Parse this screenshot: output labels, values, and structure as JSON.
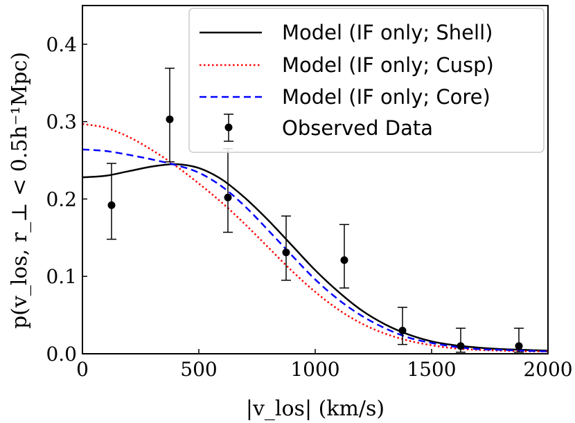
{
  "chart_data": {
    "type": "line",
    "title": "",
    "xlabel": "|v_los| (km/s)",
    "ylabel": "p(v_los, r_⊥ < 0.5h⁻¹Mpc)",
    "xlim": [
      0,
      2000
    ],
    "ylim": [
      0,
      0.45
    ],
    "xticks": [
      0,
      500,
      1000,
      1500,
      2000
    ],
    "xtick_labels": [
      "0",
      "500",
      "1000",
      "1500",
      "2000"
    ],
    "yticks": [
      0.0,
      0.1,
      0.2,
      0.3,
      0.4
    ],
    "ytick_labels": [
      "0.0",
      "0.1",
      "0.2",
      "0.3",
      "0.4"
    ],
    "grid": false,
    "legend_position": "top-right",
    "series": [
      {
        "name": "Model (IF only; Shell)",
        "color": "#000000",
        "style": "solid",
        "x": [
          0,
          100,
          200,
          300,
          400,
          500,
          600,
          700,
          800,
          900,
          1000,
          1100,
          1200,
          1300,
          1400,
          1500,
          1600,
          1700,
          1800,
          1900,
          2000
        ],
        "y": [
          0.228,
          0.23,
          0.236,
          0.242,
          0.245,
          0.24,
          0.225,
          0.201,
          0.172,
          0.14,
          0.108,
          0.08,
          0.056,
          0.038,
          0.025,
          0.016,
          0.011,
          0.008,
          0.006,
          0.005,
          0.004
        ]
      },
      {
        "name": "Model (IF only; Cusp)",
        "color": "#ff0000",
        "style": "dotted",
        "x": [
          0,
          100,
          200,
          300,
          400,
          500,
          600,
          700,
          800,
          900,
          1000,
          1100,
          1200,
          1300,
          1400,
          1500,
          1600,
          1700,
          1800,
          1900,
          2000
        ],
        "y": [
          0.297,
          0.292,
          0.28,
          0.263,
          0.243,
          0.22,
          0.195,
          0.167,
          0.137,
          0.107,
          0.08,
          0.057,
          0.039,
          0.026,
          0.017,
          0.011,
          0.007,
          0.005,
          0.004,
          0.003,
          0.003
        ]
      },
      {
        "name": "Model (IF only; Core)",
        "color": "#0000ff",
        "style": "dashed",
        "x": [
          0,
          100,
          200,
          300,
          400,
          500,
          600,
          700,
          800,
          900,
          1000,
          1100,
          1200,
          1300,
          1400,
          1500,
          1600,
          1700,
          1800,
          1900,
          2000
        ],
        "y": [
          0.264,
          0.262,
          0.257,
          0.251,
          0.244,
          0.234,
          0.216,
          0.19,
          0.159,
          0.127,
          0.096,
          0.07,
          0.049,
          0.033,
          0.021,
          0.014,
          0.009,
          0.006,
          0.005,
          0.004,
          0.003
        ]
      }
    ],
    "observed": {
      "name": "Observed Data",
      "color": "#000000",
      "x": [
        125,
        375,
        625,
        875,
        1125,
        1375,
        1625,
        1875
      ],
      "y": [
        0.192,
        0.303,
        0.202,
        0.131,
        0.121,
        0.03,
        0.01,
        0.01
      ],
      "err_low": [
        0.148,
        0.248,
        0.157,
        0.095,
        0.085,
        0.012,
        0.002,
        0.002
      ],
      "err_high": [
        0.246,
        0.369,
        0.265,
        0.178,
        0.167,
        0.06,
        0.033,
        0.033
      ]
    }
  }
}
